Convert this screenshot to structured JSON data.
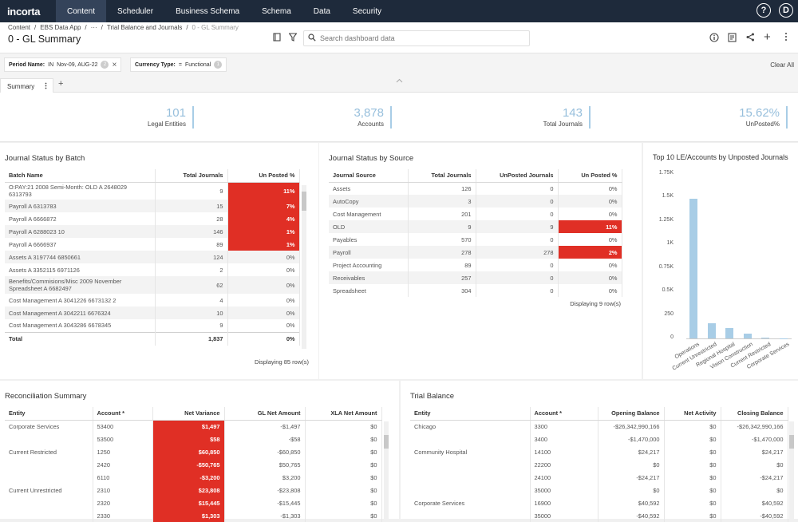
{
  "nav": {
    "logo": "incorta",
    "items": [
      "Content",
      "Scheduler",
      "Business Schema",
      "Schema",
      "Data",
      "Security"
    ],
    "help_icon": "?",
    "user_icon": "D"
  },
  "header": {
    "breadcrumb": [
      "Content",
      "EBS Data App",
      "···",
      "Trial Balance and Journals",
      "0 - GL Summary"
    ],
    "title": "0 - GL Summary",
    "search_placeholder": "Search dashboard data",
    "icons": [
      "bookmark-icon",
      "filter-icon",
      "search-icon",
      "info-icon",
      "report-icon",
      "share-icon",
      "add-icon",
      "more-icon"
    ]
  },
  "filters": [
    {
      "name": "Period Name:",
      "op": "IN",
      "value": "Nov-09, AUG-22",
      "count": "2"
    },
    {
      "name": "Currency Type:",
      "op": "=",
      "value": "Functional",
      "count": "1"
    }
  ],
  "clear_all": "Clear All",
  "tabs": [
    "Summary"
  ],
  "kpis": [
    {
      "value": "101",
      "label": "Legal Entities"
    },
    {
      "value": "3,878",
      "label": "Accounts"
    },
    {
      "value": "143",
      "label": "Total Journals"
    },
    {
      "value": "15.62%",
      "label": "UnPosted%"
    }
  ],
  "batch": {
    "title": "Journal Status by Batch",
    "columns": [
      "Batch Name",
      "Total Journals",
      "Un Posted %"
    ],
    "rows": [
      [
        "O:PAY:21 2008 Semi-Month: OLD A 2648029 6313793",
        "9",
        "11%"
      ],
      [
        "Payroll A 6313783",
        "15",
        "7%"
      ],
      [
        "Payroll A 6666872",
        "28",
        "4%"
      ],
      [
        "Payroll A 6288023 10",
        "146",
        "1%"
      ],
      [
        "Payroll A 6666937",
        "89",
        "1%"
      ],
      [
        "Assets A 3197744 6850661",
        "124",
        "0%"
      ],
      [
        "Assets A 3352115 6971126",
        "2",
        "0%"
      ],
      [
        "Benefits/Commisions/Misc 2009 November Spreadsheet A 6682497",
        "62",
        "0%"
      ],
      [
        "Cost Management A 3041226 6673132 2",
        "4",
        "0%"
      ],
      [
        "Cost Management A 3042211 6676324",
        "10",
        "0%"
      ],
      [
        "Cost Management A 3043286 6678345",
        "9",
        "0%"
      ]
    ],
    "total": [
      "Total",
      "1,837",
      "0%"
    ],
    "footer": "Displaying 85 row(s)"
  },
  "source": {
    "title": "Journal Status by Source",
    "columns": [
      "Journal Source",
      "Total Journals",
      "UnPosted Journals",
      "Un Posted %"
    ],
    "rows": [
      [
        "Assets",
        "126",
        "0",
        "0%"
      ],
      [
        "AutoCopy",
        "3",
        "0",
        "0%"
      ],
      [
        "Cost Management",
        "201",
        "0",
        "0%"
      ],
      [
        "OLD",
        "9",
        "9",
        "11%"
      ],
      [
        "Payables",
        "570",
        "0",
        "0%"
      ],
      [
        "Payroll",
        "278",
        "278",
        "2%"
      ],
      [
        "Project Accounting",
        "89",
        "0",
        "0%"
      ],
      [
        "Receivables",
        "257",
        "0",
        "0%"
      ],
      [
        "Spreadsheet",
        "304",
        "0",
        "0%"
      ]
    ],
    "footer": "Displaying 9 row(s)"
  },
  "chart_data": {
    "type": "bar",
    "title": "Top 10 LE/Accounts by Unposted Journals",
    "categories": [
      "Operations",
      "Current Unrestricted",
      "Regional Hospital",
      "Vision Construction",
      "Current Restricted",
      "Corporate Services"
    ],
    "values": [
      1490,
      165,
      110,
      55,
      10,
      4
    ],
    "y_ticks": [
      "1.75K",
      "1.5K",
      "1.25K",
      "1K",
      "0.75K",
      "0.5K",
      "250",
      "0"
    ],
    "ylim": [
      0,
      1750
    ],
    "grid": false,
    "color": "#a8cde6"
  },
  "recon": {
    "title": "Reconciliation Summary",
    "columns": [
      "Entity",
      "Account *",
      "Net Variance",
      "GL Net Amount",
      "XLA Net Amount"
    ],
    "rows": [
      [
        "Corporate Services",
        "53400",
        "$1,497",
        "-$1,497",
        "$0"
      ],
      [
        "",
        "53500",
        "$58",
        "-$58",
        "$0"
      ],
      [
        "Current Restricted",
        "1250",
        "$60,850",
        "-$60,850",
        "$0"
      ],
      [
        "",
        "2420",
        "-$50,765",
        "$50,765",
        "$0"
      ],
      [
        "",
        "6110",
        "-$3,200",
        "$3,200",
        "$0"
      ],
      [
        "Current Unrestricted",
        "2310",
        "$23,808",
        "-$23,808",
        "$0"
      ],
      [
        "",
        "2320",
        "$15,445",
        "-$15,445",
        "$0"
      ],
      [
        "",
        "2330",
        "$1,303",
        "-$1,303",
        "$0"
      ]
    ]
  },
  "trial": {
    "title": "Trial Balance",
    "columns": [
      "Entity",
      "Account *",
      "Opening Balance",
      "Net Activity",
      "Closing Balance"
    ],
    "rows": [
      [
        "Chicago",
        "3300",
        "-$26,342,990,166",
        "$0",
        "-$26,342,990,166"
      ],
      [
        "",
        "3400",
        "-$1,470,000",
        "$0",
        "-$1,470,000"
      ],
      [
        "Community Hospital",
        "14100",
        "$24,217",
        "$0",
        "$24,217"
      ],
      [
        "",
        "22200",
        "$0",
        "$0",
        "$0"
      ],
      [
        "",
        "24100",
        "-$24,217",
        "$0",
        "-$24,217"
      ],
      [
        "",
        "35000",
        "$0",
        "$0",
        "$0"
      ],
      [
        "Corporate Services",
        "16900",
        "$40,592",
        "$0",
        "$40,592"
      ],
      [
        "",
        "35000",
        "-$40,592",
        "$0",
        "-$40,592"
      ]
    ]
  },
  "colors": {
    "nav_bg": "#1e2a3b",
    "highlight": "#e02f25",
    "kpi": "#97bfdc",
    "bar": "#a8cde6"
  }
}
